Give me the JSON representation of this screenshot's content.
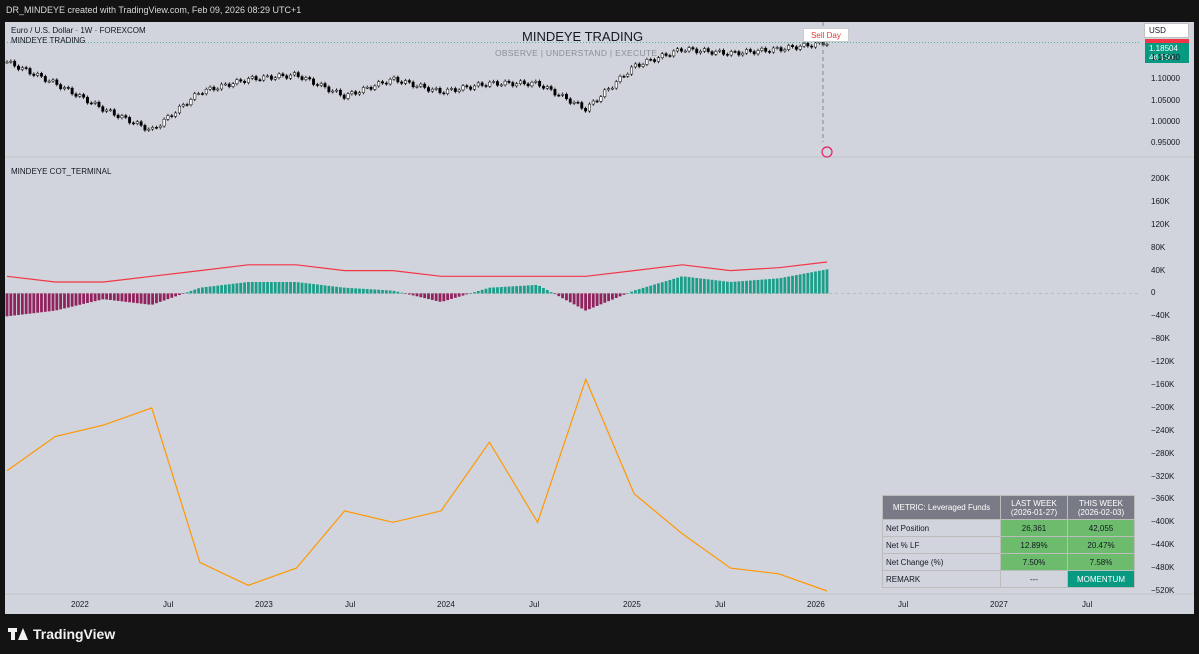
{
  "header": {
    "credit": "DR_MINDEYE created with TradingView.com, Feb 09, 2026 08:29 UTC+1"
  },
  "price_pane": {
    "symbol": "Euro / U.S. Dollar · 1W · FOREXCOM",
    "indicator": "MINDEYE TRADING",
    "title": "MINDEYE TRADING",
    "subtitle": "OBSERVE | UNDERSTAND | EXECUTE",
    "currency": "USD",
    "last_price": "1.18504",
    "countdown": "4d 15h",
    "sell_label": "Sell Day",
    "axis": [
      "1.15000",
      "1.10000",
      "1.05000",
      "1.00000",
      "0.95000"
    ]
  },
  "cot_pane": {
    "label": "MINDEYE COT_TERMINAL",
    "axis": [
      "200K",
      "160K",
      "120K",
      "80K",
      "40K",
      "0",
      "−40K",
      "−80K",
      "−120K",
      "−160K",
      "−200K",
      "−240K",
      "−280K",
      "−320K",
      "−360K",
      "−400K",
      "−440K",
      "−480K",
      "−520K"
    ]
  },
  "time_axis": [
    "2022",
    "Jul",
    "2023",
    "Jul",
    "2024",
    "Jul",
    "2025",
    "Jul",
    "2026",
    "Jul",
    "2027",
    "Jul"
  ],
  "table": {
    "head": [
      "METRIC: Leveraged Funds",
      "LAST WEEK",
      "(2026-01-27)",
      "THIS WEEK",
      "(2026-02-03)"
    ],
    "rows": [
      [
        "Net Position",
        "26,361",
        "42,055"
      ],
      [
        "Net % LF",
        "12.89%",
        "20.47%"
      ],
      [
        "Net Change (%)",
        "7.50%",
        "7.58%"
      ],
      [
        "REMARK",
        "---",
        "MOMENTUM"
      ]
    ]
  },
  "brand": "TradingView",
  "colors": {
    "up": "#089981",
    "down": "#880e4f",
    "line_red": "#f23645",
    "line_orange": "#ff9800"
  },
  "chart_data": [
    {
      "type": "line",
      "title": "MINDEYE TRADING",
      "ylabel": "EUR/USD",
      "ylim": [
        0.93,
        1.21
      ],
      "x": [
        "2022-01",
        "2022-04",
        "2022-07",
        "2022-10",
        "2023-01",
        "2023-04",
        "2023-07",
        "2023-10",
        "2024-01",
        "2024-04",
        "2024-07",
        "2024-10",
        "2025-01",
        "2025-04",
        "2025-07",
        "2025-10",
        "2026-01",
        "2026-02"
      ],
      "series": [
        {
          "values": [
            1.14,
            1.09,
            1.03,
            0.98,
            1.07,
            1.1,
            1.11,
            1.06,
            1.1,
            1.07,
            1.09,
            1.09,
            1.03,
            1.13,
            1.17,
            1.16,
            1.17,
            1.185
          ]
        }
      ]
    },
    {
      "type": "line",
      "ylim": [
        -520000,
        200000
      ],
      "x": [
        "2022-01",
        "2022-04",
        "2022-07",
        "2022-10",
        "2023-01",
        "2023-04",
        "2023-07",
        "2023-10",
        "2024-01",
        "2024-04",
        "2024-07",
        "2024-10",
        "2025-01",
        "2025-04",
        "2025-07",
        "2025-10",
        "2026-01",
        "2026-02"
      ],
      "series": [
        {
          "values": [
            -310000,
            -250000,
            -230000,
            -200000,
            -470000,
            -510000,
            -480000,
            -380000,
            -400000,
            -380000,
            -260000,
            -400000,
            -150000,
            -350000,
            -420000,
            -480000,
            -490000,
            -520000
          ]
        },
        {
          "values": [
            30000,
            20000,
            20000,
            30000,
            40000,
            50000,
            50000,
            40000,
            40000,
            30000,
            30000,
            30000,
            30000,
            40000,
            50000,
            40000,
            45000,
            55000
          ]
        },
        {
          "values": [
            -40000,
            -30000,
            -10000,
            -20000,
            10000,
            20000,
            20000,
            10000,
            5000,
            -15000,
            10000,
            15000,
            -30000,
            5000,
            30000,
            20000,
            26361,
            42055
          ]
        }
      ]
    }
  ]
}
